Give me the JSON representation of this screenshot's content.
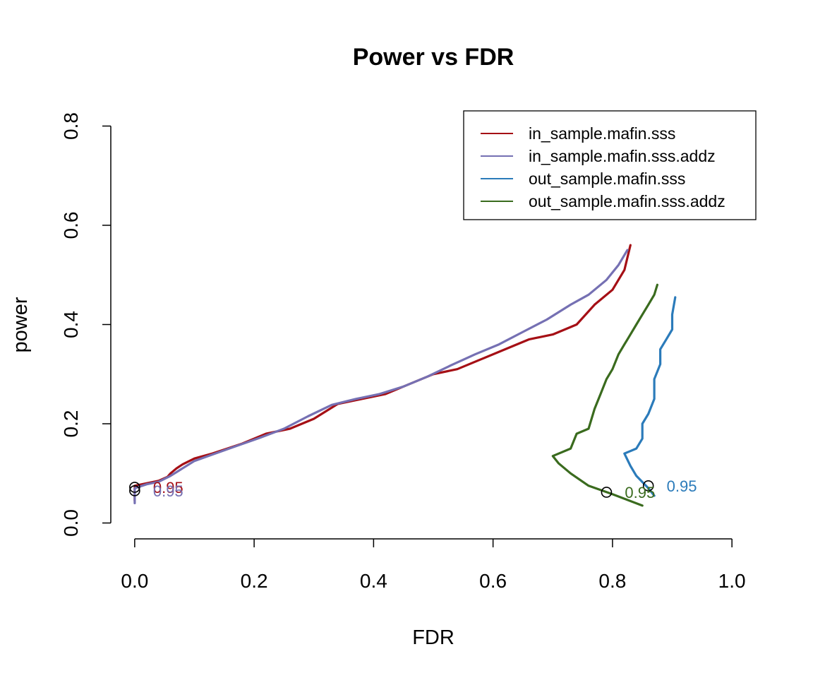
{
  "chart_data": {
    "type": "line",
    "title": "Power vs FDR",
    "xlabel": "FDR",
    "ylabel": "power",
    "xlim": [
      -0.04,
      1.04
    ],
    "ylim": [
      -0.032,
      0.832
    ],
    "x_ticks": [
      0.0,
      0.2,
      0.4,
      0.6,
      0.8,
      1.0
    ],
    "x_tick_labels": [
      "0.0",
      "0.2",
      "0.4",
      "0.6",
      "0.8",
      "1.0"
    ],
    "y_ticks": [
      0.0,
      0.2,
      0.4,
      0.6,
      0.8
    ],
    "y_tick_labels": [
      "0.0",
      "0.2",
      "0.4",
      "0.6",
      "0.8"
    ],
    "grid": false,
    "legend_position": "top-right",
    "series": [
      {
        "name": "in_sample.mafin.sss",
        "color": "#A50F15",
        "points": [
          [
            0.0,
            0.045
          ],
          [
            0.0,
            0.075
          ],
          [
            0.02,
            0.08
          ],
          [
            0.04,
            0.085
          ],
          [
            0.055,
            0.093
          ],
          [
            0.06,
            0.1
          ],
          [
            0.07,
            0.11
          ],
          [
            0.08,
            0.118
          ],
          [
            0.1,
            0.13
          ],
          [
            0.13,
            0.14
          ],
          [
            0.18,
            0.16
          ],
          [
            0.22,
            0.18
          ],
          [
            0.26,
            0.19
          ],
          [
            0.3,
            0.21
          ],
          [
            0.34,
            0.24
          ],
          [
            0.38,
            0.25
          ],
          [
            0.42,
            0.26
          ],
          [
            0.46,
            0.28
          ],
          [
            0.5,
            0.3
          ],
          [
            0.54,
            0.31
          ],
          [
            0.58,
            0.33
          ],
          [
            0.62,
            0.35
          ],
          [
            0.66,
            0.37
          ],
          [
            0.7,
            0.38
          ],
          [
            0.74,
            0.4
          ],
          [
            0.77,
            0.44
          ],
          [
            0.8,
            0.47
          ],
          [
            0.82,
            0.51
          ],
          [
            0.83,
            0.56
          ]
        ],
        "endpoint": {
          "x": 0.0,
          "y": 0.072,
          "label": "0.95"
        }
      },
      {
        "name": "in_sample.mafin.sss.addz",
        "color": "#7570B3",
        "points": [
          [
            0.0,
            0.04
          ],
          [
            0.0,
            0.07
          ],
          [
            0.02,
            0.078
          ],
          [
            0.04,
            0.083
          ],
          [
            0.06,
            0.095
          ],
          [
            0.08,
            0.11
          ],
          [
            0.1,
            0.125
          ],
          [
            0.13,
            0.138
          ],
          [
            0.17,
            0.155
          ],
          [
            0.21,
            0.172
          ],
          [
            0.25,
            0.19
          ],
          [
            0.29,
            0.215
          ],
          [
            0.33,
            0.238
          ],
          [
            0.37,
            0.25
          ],
          [
            0.41,
            0.26
          ],
          [
            0.45,
            0.275
          ],
          [
            0.49,
            0.295
          ],
          [
            0.53,
            0.318
          ],
          [
            0.57,
            0.34
          ],
          [
            0.61,
            0.36
          ],
          [
            0.65,
            0.385
          ],
          [
            0.69,
            0.41
          ],
          [
            0.73,
            0.44
          ],
          [
            0.76,
            0.46
          ],
          [
            0.79,
            0.49
          ],
          [
            0.81,
            0.52
          ],
          [
            0.825,
            0.55
          ]
        ],
        "endpoint": {
          "x": 0.0,
          "y": 0.065,
          "label": "0.95"
        }
      },
      {
        "name": "out_sample.mafin.sss",
        "color": "#2B7BBA",
        "points": [
          [
            0.87,
            0.055
          ],
          [
            0.86,
            0.07
          ],
          [
            0.84,
            0.095
          ],
          [
            0.83,
            0.115
          ],
          [
            0.82,
            0.14
          ],
          [
            0.84,
            0.15
          ],
          [
            0.85,
            0.17
          ],
          [
            0.85,
            0.2
          ],
          [
            0.86,
            0.22
          ],
          [
            0.87,
            0.25
          ],
          [
            0.87,
            0.29
          ],
          [
            0.88,
            0.32
          ],
          [
            0.88,
            0.35
          ],
          [
            0.89,
            0.37
          ],
          [
            0.9,
            0.39
          ],
          [
            0.9,
            0.42
          ],
          [
            0.905,
            0.455
          ]
        ],
        "endpoint": {
          "x": 0.86,
          "y": 0.075,
          "label": "0.95"
        }
      },
      {
        "name": "out_sample.mafin.sss.addz",
        "color": "#3A6B1E",
        "points": [
          [
            0.85,
            0.035
          ],
          [
            0.8,
            0.058
          ],
          [
            0.76,
            0.075
          ],
          [
            0.73,
            0.1
          ],
          [
            0.71,
            0.12
          ],
          [
            0.7,
            0.135
          ],
          [
            0.71,
            0.14
          ],
          [
            0.73,
            0.15
          ],
          [
            0.74,
            0.18
          ],
          [
            0.76,
            0.19
          ],
          [
            0.77,
            0.23
          ],
          [
            0.78,
            0.26
          ],
          [
            0.79,
            0.29
          ],
          [
            0.8,
            0.31
          ],
          [
            0.81,
            0.34
          ],
          [
            0.82,
            0.36
          ],
          [
            0.83,
            0.38
          ],
          [
            0.84,
            0.4
          ],
          [
            0.85,
            0.42
          ],
          [
            0.86,
            0.44
          ],
          [
            0.87,
            0.46
          ],
          [
            0.875,
            0.48
          ]
        ],
        "endpoint": {
          "x": 0.79,
          "y": 0.062,
          "label": "0.95"
        }
      }
    ]
  }
}
